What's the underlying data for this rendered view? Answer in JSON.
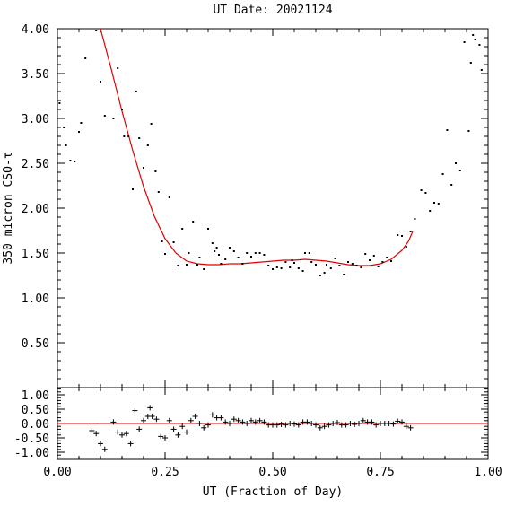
{
  "chart_data": [
    {
      "type": "scatter",
      "title": "UT Date: 20021124",
      "xlabel": "",
      "ylabel": "350 micron CSO-τ",
      "xlim": [
        0,
        1
      ],
      "ylim": [
        0,
        4
      ],
      "x_ticks": [
        "0.00",
        "0.25",
        "0.50",
        "0.75",
        "1.00"
      ],
      "y_ticks": [
        "0.50",
        "1.00",
        "1.50",
        "2.00",
        "2.50",
        "3.00",
        "3.50",
        "4.00"
      ],
      "series": [
        {
          "marker": "dot",
          "color": "#000000",
          "points": [
            [
              0.005,
              3.17
            ],
            [
              0.015,
              2.9
            ],
            [
              0.02,
              2.7
            ],
            [
              0.03,
              2.53
            ],
            [
              0.04,
              2.52
            ],
            [
              0.05,
              2.85
            ],
            [
              0.055,
              2.95
            ],
            [
              0.065,
              3.67
            ],
            [
              0.09,
              3.98
            ],
            [
              0.1,
              3.41
            ],
            [
              0.11,
              3.03
            ],
            [
              0.13,
              3.0
            ],
            [
              0.14,
              3.56
            ],
            [
              0.15,
              3.1
            ],
            [
              0.155,
              2.8
            ],
            [
              0.165,
              2.8
            ],
            [
              0.175,
              2.21
            ],
            [
              0.183,
              3.3
            ],
            [
              0.19,
              2.78
            ],
            [
              0.2,
              2.45
            ],
            [
              0.21,
              2.7
            ],
            [
              0.218,
              2.94
            ],
            [
              0.228,
              2.41
            ],
            [
              0.235,
              2.18
            ],
            [
              0.243,
              1.63
            ],
            [
              0.25,
              1.49
            ],
            [
              0.26,
              2.12
            ],
            [
              0.27,
              1.62
            ],
            [
              0.28,
              1.36
            ],
            [
              0.29,
              1.77
            ],
            [
              0.3,
              1.37
            ],
            [
              0.305,
              1.5
            ],
            [
              0.315,
              1.85
            ],
            [
              0.325,
              1.37
            ],
            [
              0.33,
              1.45
            ],
            [
              0.34,
              1.32
            ],
            [
              0.35,
              1.77
            ],
            [
              0.36,
              1.61
            ],
            [
              0.365,
              1.52
            ],
            [
              0.37,
              1.56
            ],
            [
              0.375,
              1.48
            ],
            [
              0.38,
              1.38
            ],
            [
              0.39,
              1.43
            ],
            [
              0.4,
              1.56
            ],
            [
              0.41,
              1.52
            ],
            [
              0.42,
              1.45
            ],
            [
              0.43,
              1.38
            ],
            [
              0.44,
              1.5
            ],
            [
              0.45,
              1.46
            ],
            [
              0.46,
              1.5
            ],
            [
              0.47,
              1.5
            ],
            [
              0.48,
              1.48
            ],
            [
              0.49,
              1.36
            ],
            [
              0.5,
              1.32
            ],
            [
              0.51,
              1.34
            ],
            [
              0.52,
              1.33
            ],
            [
              0.53,
              1.4
            ],
            [
              0.54,
              1.34
            ],
            [
              0.545,
              1.42
            ],
            [
              0.55,
              1.39
            ],
            [
              0.56,
              1.33
            ],
            [
              0.57,
              1.3
            ],
            [
              0.575,
              1.5
            ],
            [
              0.585,
              1.5
            ],
            [
              0.59,
              1.4
            ],
            [
              0.6,
              1.37
            ],
            [
              0.61,
              1.25
            ],
            [
              0.62,
              1.28
            ],
            [
              0.625,
              1.37
            ],
            [
              0.635,
              1.33
            ],
            [
              0.645,
              1.44
            ],
            [
              0.655,
              1.36
            ],
            [
              0.665,
              1.26
            ],
            [
              0.675,
              1.4
            ],
            [
              0.685,
              1.38
            ],
            [
              0.695,
              1.36
            ],
            [
              0.705,
              1.34
            ],
            [
              0.715,
              1.49
            ],
            [
              0.725,
              1.42
            ],
            [
              0.735,
              1.47
            ],
            [
              0.745,
              1.35
            ],
            [
              0.755,
              1.4
            ],
            [
              0.765,
              1.45
            ],
            [
              0.775,
              1.41
            ],
            [
              0.79,
              1.7
            ],
            [
              0.8,
              1.69
            ],
            [
              0.81,
              1.57
            ],
            [
              0.82,
              1.74
            ],
            [
              0.83,
              1.88
            ],
            [
              0.845,
              2.2
            ],
            [
              0.855,
              2.17
            ],
            [
              0.865,
              1.97
            ],
            [
              0.875,
              2.06
            ],
            [
              0.885,
              2.05
            ],
            [
              0.895,
              2.38
            ],
            [
              0.905,
              2.87
            ],
            [
              0.915,
              2.26
            ],
            [
              0.925,
              2.5
            ],
            [
              0.935,
              2.42
            ],
            [
              0.945,
              3.85
            ],
            [
              0.955,
              2.86
            ],
            [
              0.96,
              3.62
            ],
            [
              0.965,
              3.93
            ],
            [
              0.97,
              3.88
            ],
            [
              0.98,
              3.82
            ],
            [
              0.985,
              3.54
            ]
          ]
        },
        {
          "type": "line",
          "color": "#e00000",
          "points": [
            [
              0.1,
              4.0
            ],
            [
              0.125,
              3.55
            ],
            [
              0.15,
              3.08
            ],
            [
              0.175,
              2.64
            ],
            [
              0.2,
              2.24
            ],
            [
              0.225,
              1.91
            ],
            [
              0.25,
              1.66
            ],
            [
              0.275,
              1.5
            ],
            [
              0.3,
              1.41
            ],
            [
              0.325,
              1.38
            ],
            [
              0.35,
              1.37
            ],
            [
              0.375,
              1.37
            ],
            [
              0.4,
              1.38
            ],
            [
              0.425,
              1.38
            ],
            [
              0.45,
              1.39
            ],
            [
              0.475,
              1.4
            ],
            [
              0.5,
              1.41
            ],
            [
              0.525,
              1.42
            ],
            [
              0.55,
              1.42
            ],
            [
              0.575,
              1.43
            ],
            [
              0.6,
              1.42
            ],
            [
              0.625,
              1.41
            ],
            [
              0.65,
              1.39
            ],
            [
              0.675,
              1.37
            ],
            [
              0.7,
              1.36
            ],
            [
              0.725,
              1.36
            ],
            [
              0.75,
              1.38
            ],
            [
              0.775,
              1.43
            ],
            [
              0.8,
              1.53
            ],
            [
              0.815,
              1.63
            ],
            [
              0.825,
              1.74
            ]
          ]
        }
      ]
    },
    {
      "type": "scatter",
      "xlabel": "UT (Fraction of Day)",
      "ylabel": "",
      "xlim": [
        0,
        1
      ],
      "ylim": [
        -1.25,
        1.25
      ],
      "x_ticks": [
        "0.00",
        "0.25",
        "0.50",
        "0.75",
        "1.00"
      ],
      "y_ticks": [
        "-1.00",
        "-0.50",
        "0.00",
        "0.50",
        "1.00"
      ],
      "series": [
        {
          "marker": "plus",
          "color": "#000000",
          "points": [
            [
              0.08,
              -0.25
            ],
            [
              0.09,
              -0.35
            ],
            [
              0.1,
              -0.7
            ],
            [
              0.11,
              -0.9
            ],
            [
              0.13,
              0.05
            ],
            [
              0.14,
              -0.3
            ],
            [
              0.15,
              -0.4
            ],
            [
              0.16,
              -0.35
            ],
            [
              0.17,
              -0.7
            ],
            [
              0.18,
              0.45
            ],
            [
              0.19,
              -0.2
            ],
            [
              0.2,
              0.1
            ],
            [
              0.21,
              0.25
            ],
            [
              0.215,
              0.55
            ],
            [
              0.22,
              0.25
            ],
            [
              0.23,
              0.15
            ],
            [
              0.24,
              -0.45
            ],
            [
              0.25,
              -0.5
            ],
            [
              0.26,
              0.1
            ],
            [
              0.27,
              -0.2
            ],
            [
              0.28,
              -0.4
            ],
            [
              0.29,
              -0.1
            ],
            [
              0.3,
              -0.3
            ],
            [
              0.31,
              0.1
            ],
            [
              0.32,
              0.25
            ],
            [
              0.33,
              0.0
            ],
            [
              0.34,
              -0.15
            ],
            [
              0.35,
              -0.05
            ],
            [
              0.36,
              0.3
            ],
            [
              0.37,
              0.2
            ],
            [
              0.38,
              0.2
            ],
            [
              0.39,
              0.05
            ],
            [
              0.4,
              0.0
            ],
            [
              0.41,
              0.15
            ],
            [
              0.42,
              0.1
            ],
            [
              0.43,
              0.05
            ],
            [
              0.44,
              0.0
            ],
            [
              0.45,
              0.1
            ],
            [
              0.46,
              0.05
            ],
            [
              0.47,
              0.1
            ],
            [
              0.48,
              0.05
            ],
            [
              0.49,
              -0.05
            ],
            [
              0.5,
              -0.05
            ],
            [
              0.51,
              -0.05
            ],
            [
              0.52,
              -0.03
            ],
            [
              0.53,
              -0.05
            ],
            [
              0.54,
              0.0
            ],
            [
              0.55,
              -0.02
            ],
            [
              0.56,
              -0.05
            ],
            [
              0.57,
              0.05
            ],
            [
              0.58,
              0.05
            ],
            [
              0.59,
              0.0
            ],
            [
              0.6,
              -0.05
            ],
            [
              0.61,
              -0.15
            ],
            [
              0.62,
              -0.1
            ],
            [
              0.63,
              -0.05
            ],
            [
              0.64,
              0.0
            ],
            [
              0.65,
              0.03
            ],
            [
              0.66,
              -0.05
            ],
            [
              0.67,
              -0.05
            ],
            [
              0.68,
              0.0
            ],
            [
              0.69,
              -0.03
            ],
            [
              0.7,
              0.0
            ],
            [
              0.71,
              0.1
            ],
            [
              0.72,
              0.05
            ],
            [
              0.73,
              0.05
            ],
            [
              0.74,
              -0.05
            ],
            [
              0.75,
              0.0
            ],
            [
              0.76,
              0.0
            ],
            [
              0.77,
              0.0
            ],
            [
              0.78,
              -0.02
            ],
            [
              0.79,
              0.08
            ],
            [
              0.8,
              0.05
            ],
            [
              0.81,
              -0.1
            ],
            [
              0.82,
              -0.15
            ]
          ]
        },
        {
          "type": "line",
          "color": "#e00000",
          "points": [
            [
              0,
              0
            ],
            [
              1,
              0
            ]
          ]
        }
      ]
    }
  ]
}
